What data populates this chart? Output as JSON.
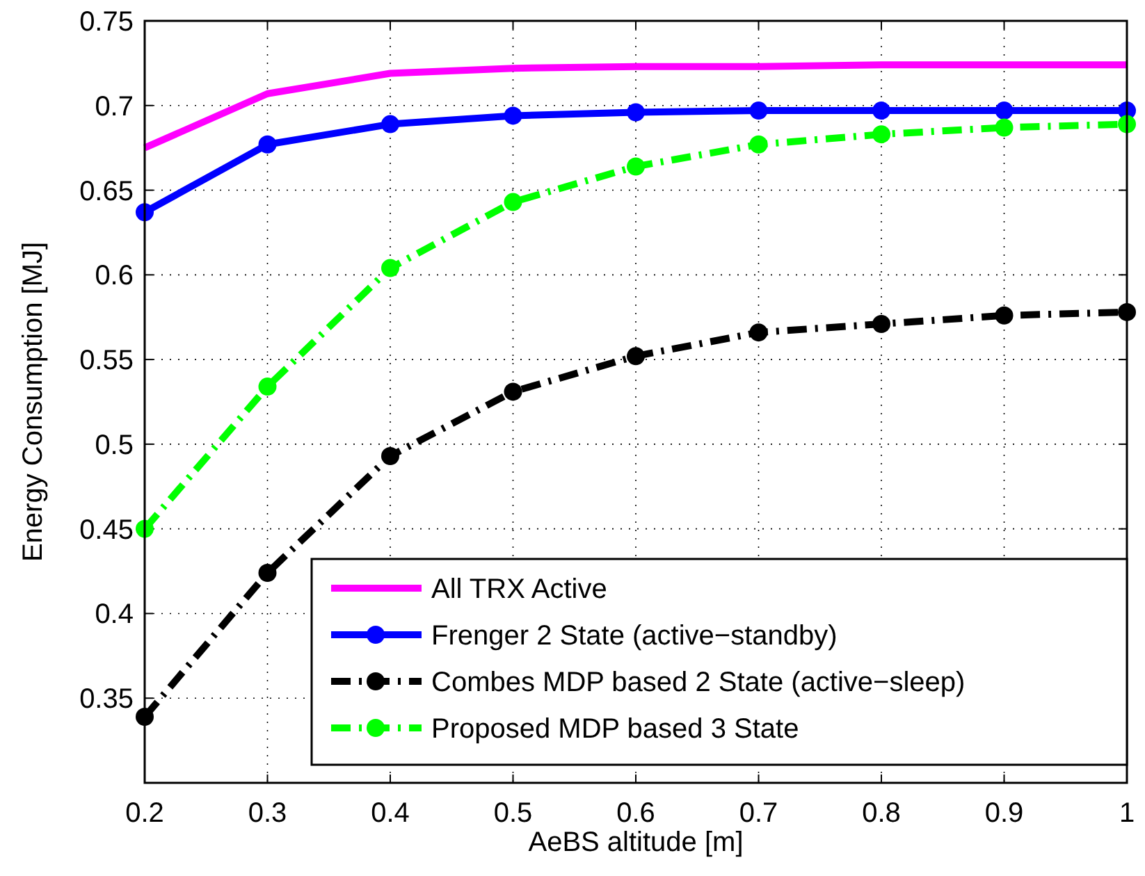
{
  "chart_data": {
    "type": "line",
    "xlabel": "AeBS altitude [m]",
    "ylabel": "Energy Consumption [MJ]",
    "x": [
      0.2,
      0.3,
      0.4,
      0.5,
      0.6,
      0.7,
      0.8,
      0.9,
      1.0
    ],
    "xlim": [
      0.2,
      1.0
    ],
    "xticks": [
      0.2,
      0.3,
      0.4,
      0.5,
      0.6,
      0.7,
      0.8,
      0.9,
      1
    ],
    "ylim": [
      0.3,
      0.75
    ],
    "yticks": [
      0.35,
      0.4,
      0.45,
      0.5,
      0.55,
      0.6,
      0.65,
      0.7,
      0.75
    ],
    "grid": true,
    "legend": "bottom right",
    "series": [
      {
        "name": "All TRX Active",
        "color": "#ff00ff",
        "marker": "none",
        "line_style": "solid",
        "values": [
          0.675,
          0.707,
          0.719,
          0.722,
          0.723,
          0.723,
          0.724,
          0.724,
          0.724
        ]
      },
      {
        "name": "Frenger 2 State (active−standby)",
        "color": "#0000ff",
        "marker": "circle",
        "line_style": "solid",
        "values": [
          0.637,
          0.677,
          0.689,
          0.694,
          0.696,
          0.697,
          0.697,
          0.697,
          0.697
        ]
      },
      {
        "name": "Combes MDP based 2 State (active−sleep)",
        "color": "#000000",
        "marker": "circle",
        "line_style": "dashed",
        "values": [
          0.339,
          0.424,
          0.493,
          0.531,
          0.552,
          0.566,
          0.571,
          0.576,
          0.578
        ]
      },
      {
        "name": "Proposed MDP based 3 State",
        "color": "#00ff00",
        "marker": "circle",
        "line_style": "dashed",
        "values": [
          0.45,
          0.534,
          0.604,
          0.643,
          0.664,
          0.677,
          0.683,
          0.687,
          0.689
        ]
      }
    ]
  }
}
